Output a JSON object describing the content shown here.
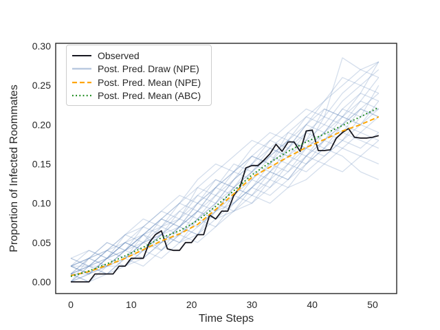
{
  "figure": {
    "background": "#ffffff"
  },
  "chart_data": {
    "type": "line",
    "title": "",
    "xlabel": "Time Steps",
    "ylabel": "Proportion of Infected Roommates",
    "xlim": [
      -2.51,
      53.99
    ],
    "ylim": [
      -0.0149,
      0.3035
    ],
    "grid": false,
    "legend_position": "upper left",
    "x_ticks": [
      {
        "v": 0,
        "label": "0"
      },
      {
        "v": 10,
        "label": "10"
      },
      {
        "v": 20,
        "label": "20"
      },
      {
        "v": 30,
        "label": "30"
      },
      {
        "v": 40,
        "label": "40"
      },
      {
        "v": 50,
        "label": "50"
      }
    ],
    "y_ticks": [
      {
        "v": 0.0,
        "label": "0.00"
      },
      {
        "v": 0.05,
        "label": "0.05"
      },
      {
        "v": 0.1,
        "label": "0.10"
      },
      {
        "v": 0.15,
        "label": "0.15"
      },
      {
        "v": 0.2,
        "label": "0.20"
      },
      {
        "v": 0.25,
        "label": "0.25"
      },
      {
        "v": 0.3,
        "label": "0.30"
      }
    ],
    "legend": [
      {
        "label": "Observed"
      },
      {
        "label": "Post. Pred. Draw (NPE)"
      },
      {
        "label": "Post. Pred. Mean (NPE)"
      },
      {
        "label": "Post. Pred. Mean (ABC)"
      }
    ],
    "observed": {
      "name": "Observed",
      "color": "#16161f",
      "width": 1.8,
      "x_start": 0,
      "x_step": 1,
      "values": [
        0.0,
        0.0,
        0.0,
        0.0,
        0.01,
        0.01,
        0.01,
        0.01,
        0.02,
        0.02,
        0.03,
        0.03,
        0.03,
        0.05,
        0.06,
        0.065,
        0.042,
        0.04,
        0.04,
        0.05,
        0.05,
        0.06,
        0.06,
        0.085,
        0.08,
        0.09,
        0.09,
        0.11,
        0.12,
        0.145,
        0.148,
        0.148,
        0.155,
        0.163,
        0.175,
        0.166,
        0.178,
        0.178,
        0.166,
        0.192,
        0.193,
        0.167,
        0.167,
        0.168,
        0.183,
        0.19,
        0.195,
        0.184,
        0.183,
        0.183,
        0.184,
        0.186
      ]
    },
    "npe_mean": {
      "name": "Post. Pred. Mean (NPE)",
      "color": "#ffa500",
      "width": 2.0,
      "dash": "7,4",
      "x_start": 0,
      "x_step": 3,
      "values": [
        0.008,
        0.013,
        0.021,
        0.03,
        0.041,
        0.052,
        0.061,
        0.073,
        0.092,
        0.112,
        0.133,
        0.146,
        0.159,
        0.171,
        0.181,
        0.192,
        0.2,
        0.21
      ]
    },
    "abc_mean": {
      "name": "Post. Pred. Mean (ABC)",
      "color": "#178717",
      "width": 2.0,
      "dash": "1.8,3.4",
      "x_start": 0,
      "x_step": 3,
      "values": [
        0.007,
        0.014,
        0.023,
        0.033,
        0.044,
        0.056,
        0.065,
        0.078,
        0.096,
        0.116,
        0.136,
        0.152,
        0.166,
        0.178,
        0.188,
        0.199,
        0.21,
        0.222
      ]
    },
    "draws": {
      "name": "Post. Pred. Draw (NPE)",
      "color": "#6688bb",
      "opacity": 0.28,
      "width": 1.3,
      "x_start": 0,
      "x_step": 3,
      "series": [
        [
          0.02,
          0.03,
          0.02,
          0.04,
          0.05,
          0.06,
          0.05,
          0.08,
          0.1,
          0.12,
          0.11,
          0.14,
          0.16,
          0.15,
          0.18,
          0.2,
          0.19,
          0.21
        ],
        [
          0.01,
          0.01,
          0.03,
          0.02,
          0.04,
          0.06,
          0.08,
          0.07,
          0.09,
          0.1,
          0.13,
          0.15,
          0.14,
          0.17,
          0.19,
          0.22,
          0.24,
          0.28
        ],
        [
          0.0,
          0.02,
          0.03,
          0.05,
          0.04,
          0.06,
          0.07,
          0.09,
          0.08,
          0.11,
          0.14,
          0.13,
          0.17,
          0.2,
          0.23,
          0.26,
          0.25,
          0.27
        ],
        [
          0.03,
          0.02,
          0.04,
          0.03,
          0.06,
          0.05,
          0.07,
          0.06,
          0.1,
          0.09,
          0.12,
          0.14,
          0.17,
          0.16,
          0.19,
          0.18,
          0.21,
          0.22
        ],
        [
          0.01,
          0.02,
          0.02,
          0.03,
          0.05,
          0.07,
          0.06,
          0.08,
          0.11,
          0.13,
          0.15,
          0.14,
          0.13,
          0.16,
          0.15,
          0.17,
          0.16,
          0.18
        ],
        [
          0.02,
          0.01,
          0.03,
          0.05,
          0.06,
          0.04,
          0.07,
          0.1,
          0.09,
          0.12,
          0.11,
          0.13,
          0.15,
          0.18,
          0.17,
          0.2,
          0.22,
          0.21
        ],
        [
          0.0,
          0.01,
          0.02,
          0.02,
          0.03,
          0.05,
          0.06,
          0.09,
          0.11,
          0.1,
          0.12,
          0.15,
          0.18,
          0.17,
          0.21,
          0.285,
          0.27,
          0.28
        ],
        [
          0.02,
          0.03,
          0.05,
          0.04,
          0.06,
          0.08,
          0.1,
          0.09,
          0.12,
          0.14,
          0.16,
          0.15,
          0.17,
          0.19,
          0.18,
          0.21,
          0.2,
          0.23
        ],
        [
          0.01,
          0.0,
          0.01,
          0.03,
          0.04,
          0.03,
          0.05,
          0.06,
          0.08,
          0.09,
          0.11,
          0.1,
          0.12,
          0.13,
          0.15,
          0.14,
          0.16,
          0.15
        ],
        [
          0.03,
          0.04,
          0.03,
          0.05,
          0.07,
          0.06,
          0.09,
          0.11,
          0.13,
          0.12,
          0.14,
          0.17,
          0.16,
          0.18,
          0.2,
          0.19,
          0.22,
          0.24
        ],
        [
          0.0,
          0.02,
          0.01,
          0.03,
          0.02,
          0.04,
          0.06,
          0.05,
          0.07,
          0.1,
          0.12,
          0.14,
          0.13,
          0.15,
          0.17,
          0.16,
          0.14,
          0.13
        ],
        [
          0.02,
          0.02,
          0.04,
          0.06,
          0.05,
          0.08,
          0.07,
          0.1,
          0.12,
          0.15,
          0.14,
          0.16,
          0.18,
          0.21,
          0.2,
          0.23,
          0.25,
          0.24
        ],
        [
          0.01,
          0.03,
          0.02,
          0.04,
          0.06,
          0.07,
          0.09,
          0.08,
          0.1,
          0.13,
          0.16,
          0.15,
          0.19,
          0.18,
          0.22,
          0.21,
          0.23,
          0.22
        ],
        [
          0.02,
          0.01,
          0.02,
          0.03,
          0.05,
          0.04,
          0.06,
          0.08,
          0.07,
          0.09,
          0.1,
          0.12,
          0.15,
          0.14,
          0.16,
          0.18,
          0.17,
          0.19
        ],
        [
          0.0,
          0.01,
          0.03,
          0.04,
          0.06,
          0.08,
          0.07,
          0.09,
          0.12,
          0.11,
          0.13,
          0.16,
          0.15,
          0.17,
          0.19,
          0.22,
          0.21,
          0.25
        ],
        [
          0.03,
          0.02,
          0.03,
          0.05,
          0.04,
          0.07,
          0.08,
          0.11,
          0.1,
          0.13,
          0.15,
          0.17,
          0.16,
          0.19,
          0.21,
          0.2,
          0.23,
          0.26
        ],
        [
          0.01,
          0.02,
          0.04,
          0.03,
          0.05,
          0.06,
          0.08,
          0.1,
          0.12,
          0.14,
          0.13,
          0.12,
          0.14,
          0.16,
          0.18,
          0.17,
          0.19,
          0.18
        ],
        [
          0.02,
          0.04,
          0.03,
          0.06,
          0.07,
          0.09,
          0.11,
          0.1,
          0.13,
          0.12,
          0.15,
          0.18,
          0.2,
          0.22,
          0.21,
          0.24,
          0.26,
          0.28
        ],
        [
          0.01,
          0.0,
          0.02,
          0.04,
          0.03,
          0.05,
          0.07,
          0.06,
          0.09,
          0.11,
          0.1,
          0.13,
          0.12,
          0.15,
          0.17,
          0.19,
          0.18,
          0.17
        ],
        [
          0.0,
          0.03,
          0.05,
          0.04,
          0.07,
          0.09,
          0.08,
          0.12,
          0.11,
          0.14,
          0.16,
          0.18,
          0.17,
          0.2,
          0.19,
          0.21,
          0.24,
          0.23
        ],
        [
          0.02,
          0.03,
          0.04,
          0.06,
          0.08,
          0.07,
          0.1,
          0.12,
          0.14,
          0.16,
          0.18,
          0.17,
          0.19,
          0.21,
          0.23,
          0.25,
          0.27,
          0.26
        ],
        [
          0.01,
          0.02,
          0.01,
          0.02,
          0.04,
          0.05,
          0.07,
          0.09,
          0.08,
          0.1,
          0.12,
          0.11,
          0.13,
          0.16,
          0.18,
          0.2,
          0.22,
          0.21
        ],
        [
          0.02,
          0.01,
          0.03,
          0.04,
          0.06,
          0.08,
          0.1,
          0.13,
          0.15,
          0.14,
          0.17,
          0.19,
          0.18,
          0.2,
          0.22,
          0.21,
          0.2,
          0.22
        ],
        [
          0.01,
          0.03,
          0.04,
          0.05,
          0.04,
          0.06,
          0.05,
          0.07,
          0.09,
          0.12,
          0.14,
          0.16,
          0.18,
          0.17,
          0.16,
          0.18,
          0.2,
          0.19
        ]
      ]
    }
  }
}
